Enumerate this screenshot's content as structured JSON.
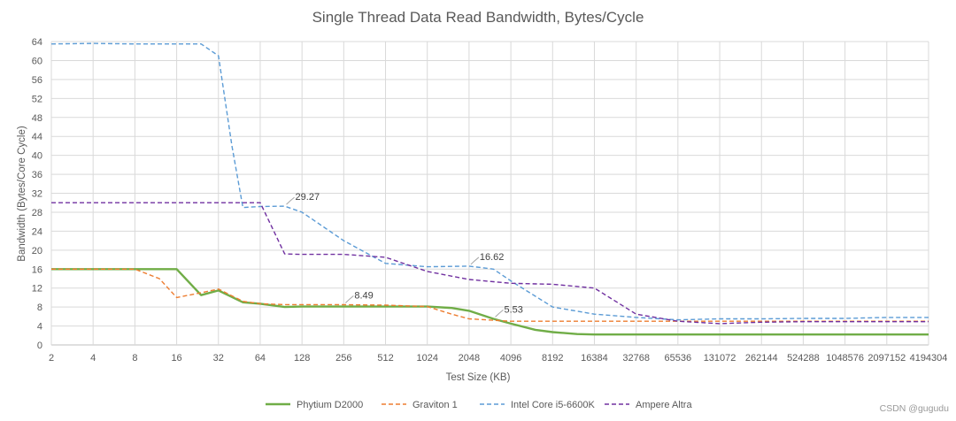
{
  "chart_data": {
    "type": "line",
    "title": "Single Thread Data Read Bandwidth, Bytes/Cycle",
    "xlabel": "Test Size (KB)",
    "ylabel": "Bandwidth (Bytes/Core Cycle)",
    "x_scale": "log2",
    "x_ticks": [
      "2",
      "4",
      "8",
      "16",
      "32",
      "64",
      "128",
      "256",
      "512",
      "1024",
      "2048",
      "4096",
      "8192",
      "16384",
      "32768",
      "65536",
      "131072",
      "262144",
      "524288",
      "1048576",
      "2097152",
      "4194304"
    ],
    "ylim": [
      0,
      64
    ],
    "y_ticks": [
      0,
      4,
      8,
      12,
      16,
      20,
      24,
      28,
      32,
      36,
      40,
      44,
      48,
      52,
      56,
      60,
      64
    ],
    "grid": true,
    "legend_position": "bottom",
    "series": [
      {
        "name": "Phytium D2000",
        "color": "#70ad47",
        "dash": "solid",
        "points": [
          [
            2,
            16
          ],
          [
            4,
            16
          ],
          [
            8,
            16
          ],
          [
            16,
            16
          ],
          [
            24,
            10.5
          ],
          [
            32,
            11.5
          ],
          [
            48,
            9
          ],
          [
            64,
            8.7
          ],
          [
            96,
            8
          ],
          [
            128,
            8.1
          ],
          [
            256,
            8.1
          ],
          [
            512,
            8.1
          ],
          [
            1024,
            8.1
          ],
          [
            1536,
            7.8
          ],
          [
            2048,
            7.2
          ],
          [
            3072,
            5.5
          ],
          [
            4096,
            4.5
          ],
          [
            6144,
            3.2
          ],
          [
            8192,
            2.7
          ],
          [
            12288,
            2.3
          ],
          [
            16384,
            2.2
          ],
          [
            32768,
            2.2
          ],
          [
            65536,
            2.2
          ],
          [
            131072,
            2.2
          ],
          [
            262144,
            2.2
          ],
          [
            524288,
            2.2
          ],
          [
            1048576,
            2.2
          ],
          [
            2097152,
            2.2
          ],
          [
            4194304,
            2.2
          ]
        ]
      },
      {
        "name": "Graviton 1",
        "color": "#ed7d31",
        "dash": "dashed",
        "points": [
          [
            2,
            16
          ],
          [
            4,
            16
          ],
          [
            8,
            16
          ],
          [
            12,
            14
          ],
          [
            16,
            10
          ],
          [
            24,
            11
          ],
          [
            32,
            11.8
          ],
          [
            48,
            9.2
          ],
          [
            64,
            8.7
          ],
          [
            96,
            8.5
          ],
          [
            128,
            8.5
          ],
          [
            256,
            8.49
          ],
          [
            512,
            8.4
          ],
          [
            1024,
            8.1
          ],
          [
            1536,
            6.5
          ],
          [
            2048,
            5.5
          ],
          [
            3072,
            5.2
          ],
          [
            4096,
            5
          ],
          [
            8192,
            5
          ],
          [
            16384,
            5
          ],
          [
            32768,
            5
          ],
          [
            65536,
            5
          ],
          [
            131072,
            5
          ],
          [
            262144,
            5
          ],
          [
            524288,
            5
          ],
          [
            1048576,
            5
          ],
          [
            2097152,
            5
          ],
          [
            4194304,
            5
          ]
        ]
      },
      {
        "name": "Intel Core i5-6600K",
        "color": "#5b9bd5",
        "dash": "dashed",
        "points": [
          [
            2,
            63.5
          ],
          [
            4,
            63.6
          ],
          [
            8,
            63.5
          ],
          [
            16,
            63.5
          ],
          [
            24,
            63.5
          ],
          [
            32,
            61
          ],
          [
            40,
            42
          ],
          [
            48,
            29
          ],
          [
            64,
            29.2
          ],
          [
            96,
            29.27
          ],
          [
            128,
            28
          ],
          [
            256,
            22
          ],
          [
            512,
            17.2
          ],
          [
            1024,
            16.5
          ],
          [
            2048,
            16.62
          ],
          [
            3072,
            16
          ],
          [
            4096,
            13.5
          ],
          [
            8192,
            8
          ],
          [
            16384,
            6.5
          ],
          [
            32768,
            5.8
          ],
          [
            65536,
            5.3
          ],
          [
            131072,
            5.5
          ],
          [
            262144,
            5.5
          ],
          [
            524288,
            5.6
          ],
          [
            1048576,
            5.6
          ],
          [
            2097152,
            5.8
          ],
          [
            4194304,
            5.8
          ]
        ]
      },
      {
        "name": "Ampere Altra",
        "color": "#7030a0",
        "dash": "dashed",
        "points": [
          [
            2,
            30
          ],
          [
            4,
            30
          ],
          [
            8,
            30
          ],
          [
            16,
            30
          ],
          [
            32,
            30
          ],
          [
            64,
            30
          ],
          [
            96,
            19.2
          ],
          [
            128,
            19.1
          ],
          [
            256,
            19.1
          ],
          [
            512,
            18.5
          ],
          [
            1024,
            15.5
          ],
          [
            2048,
            13.8
          ],
          [
            4096,
            13
          ],
          [
            8192,
            12.8
          ],
          [
            16384,
            12
          ],
          [
            32768,
            6.5
          ],
          [
            65536,
            5
          ],
          [
            131072,
            4.5
          ],
          [
            262144,
            4.8
          ],
          [
            524288,
            4.9
          ],
          [
            1048576,
            4.9
          ],
          [
            2097152,
            4.9
          ],
          [
            4194304,
            4.9
          ]
        ]
      }
    ],
    "annotations": [
      {
        "series": "Intel Core i5-6600K",
        "x": 96,
        "y": 29.27,
        "text": "29.27"
      },
      {
        "series": "Intel Core i5-6600K",
        "x": 2048,
        "y": 16.62,
        "text": "16.62"
      },
      {
        "series": "Graviton 1",
        "x": 256,
        "y": 8.49,
        "text": "8.49"
      },
      {
        "series": "Phytium D2000",
        "x": 3072,
        "y": 5.53,
        "text": "5.53"
      }
    ]
  },
  "watermark": "CSDN @gugudu"
}
